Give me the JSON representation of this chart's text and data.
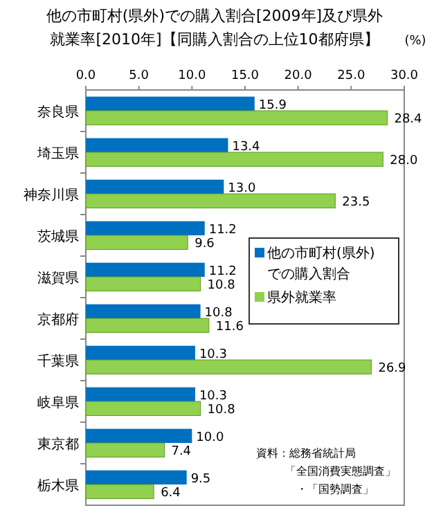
{
  "chart_data": {
    "type": "bar",
    "orientation": "horizontal",
    "title": "他の市町村(県外)での購入割合[2009年]及び県外就業率[2010年]【同購入割合の上位10都府県】",
    "xlabel": "(%)",
    "categories": [
      "奈良県",
      "埼玉県",
      "神奈川県",
      "茨城県",
      "滋賀県",
      "京都府",
      "千葉県",
      "岐阜県",
      "東京都",
      "栃木県"
    ],
    "series": [
      {
        "name": "他の市町村(県外)\nでの購入割合",
        "color": "#0070c0",
        "values": [
          15.9,
          13.4,
          13.0,
          11.2,
          11.2,
          10.8,
          10.3,
          10.3,
          10.0,
          9.5
        ],
        "value_labels": [
          "15.9",
          "13.4",
          "13.0",
          "11.2",
          "11.2",
          "10.8",
          "10.3",
          "10.3",
          "10.0",
          "9.5"
        ]
      },
      {
        "name": "県外就業率",
        "color": "#92d050",
        "values": [
          28.4,
          28.0,
          23.5,
          9.6,
          10.8,
          11.6,
          26.9,
          10.8,
          7.4,
          6.4
        ],
        "value_labels": [
          "28.4",
          "28.0",
          "23.5",
          "9.6",
          "10.8",
          "11.6",
          "26.9",
          "10.8",
          "7.4",
          "6.4"
        ]
      }
    ],
    "xlim": [
      0,
      30
    ],
    "xticks": [
      {
        "value": 0,
        "label": "0.0"
      },
      {
        "value": 5,
        "label": "5.0"
      },
      {
        "value": 10,
        "label": "10.0"
      },
      {
        "value": 15,
        "label": "15.0"
      },
      {
        "value": 20,
        "label": "20.0"
      },
      {
        "value": 25,
        "label": "25.0"
      },
      {
        "value": 30,
        "label": "30.0"
      }
    ],
    "legend": "right",
    "grid": false,
    "annotations": [
      "資料：総務省統計局",
      "「全国消費実態調査」",
      "・「国勢調査」"
    ]
  }
}
